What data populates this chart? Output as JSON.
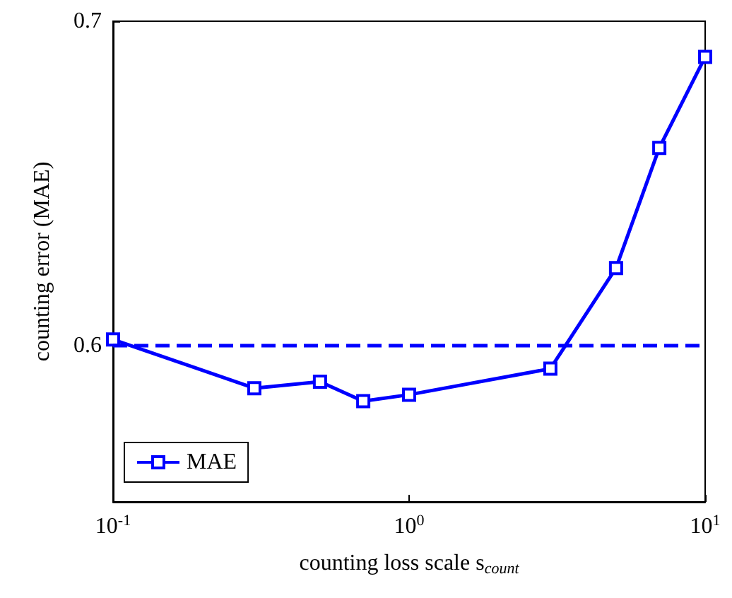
{
  "chart_data": {
    "type": "line",
    "xlabel": "counting loss scale s$_{count}$",
    "ylabel": "counting error (MAE)",
    "x": [
      0.1,
      0.3,
      0.5,
      0.7,
      1,
      3,
      5,
      7,
      10
    ],
    "series": [
      {
        "name": "MAE",
        "color": "#0000ff",
        "values": [
          0.602,
          0.587,
          0.589,
          0.583,
          0.585,
          0.593,
          0.624,
          0.661,
          0.689
        ]
      }
    ],
    "log": "x",
    "xlim": [
      0.1,
      10
    ],
    "xticks": [
      {
        "value": 0.1,
        "label": "10$^{-1}$"
      },
      {
        "value": 1,
        "label": "10$^{0}$"
      },
      {
        "value": 10,
        "label": "10$^{1}$"
      }
    ],
    "ylim": [
      0.552,
      0.7
    ],
    "yticks": [
      0.6,
      0.7
    ],
    "ref_lines": [
      {
        "axis": "y",
        "value": 0.6,
        "color": "#0000ff",
        "line_style": "dashed"
      }
    ],
    "legend": "bottom left",
    "marker": "square",
    "line_style": "solid",
    "grid": false
  }
}
